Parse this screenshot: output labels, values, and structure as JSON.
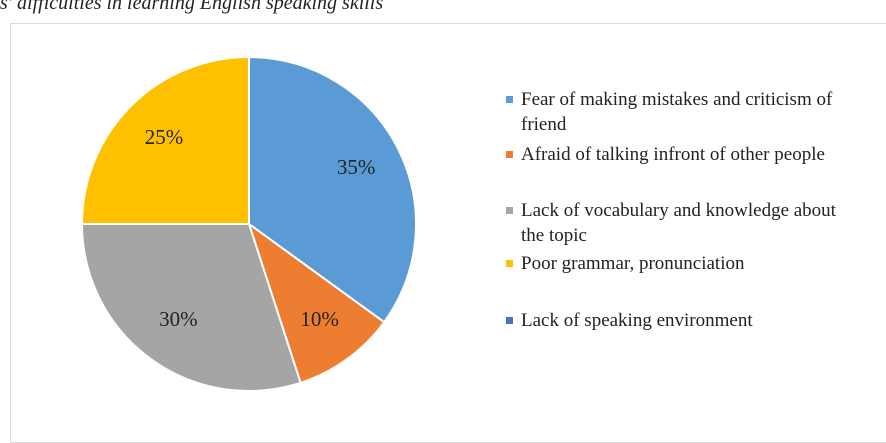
{
  "chart_data": {
    "type": "pie",
    "title": "s' difficulties in learning English speaking skills",
    "categories": [
      "Fear of making mistakes and criticism of friend",
      "Afraid of talking infront of other people",
      "Lack of vocabulary and knowledge about the topic",
      "Poor grammar, pronunciation",
      "Lack of speaking environment"
    ],
    "values": [
      35,
      10,
      30,
      25,
      0
    ],
    "value_labels": [
      "35%",
      "10%",
      "30%",
      "25%",
      null
    ],
    "colors": [
      "#5b9bd5",
      "#ed7d31",
      "#a5a5a5",
      "#ffc000",
      "#4472c4"
    ],
    "legend": "right"
  }
}
